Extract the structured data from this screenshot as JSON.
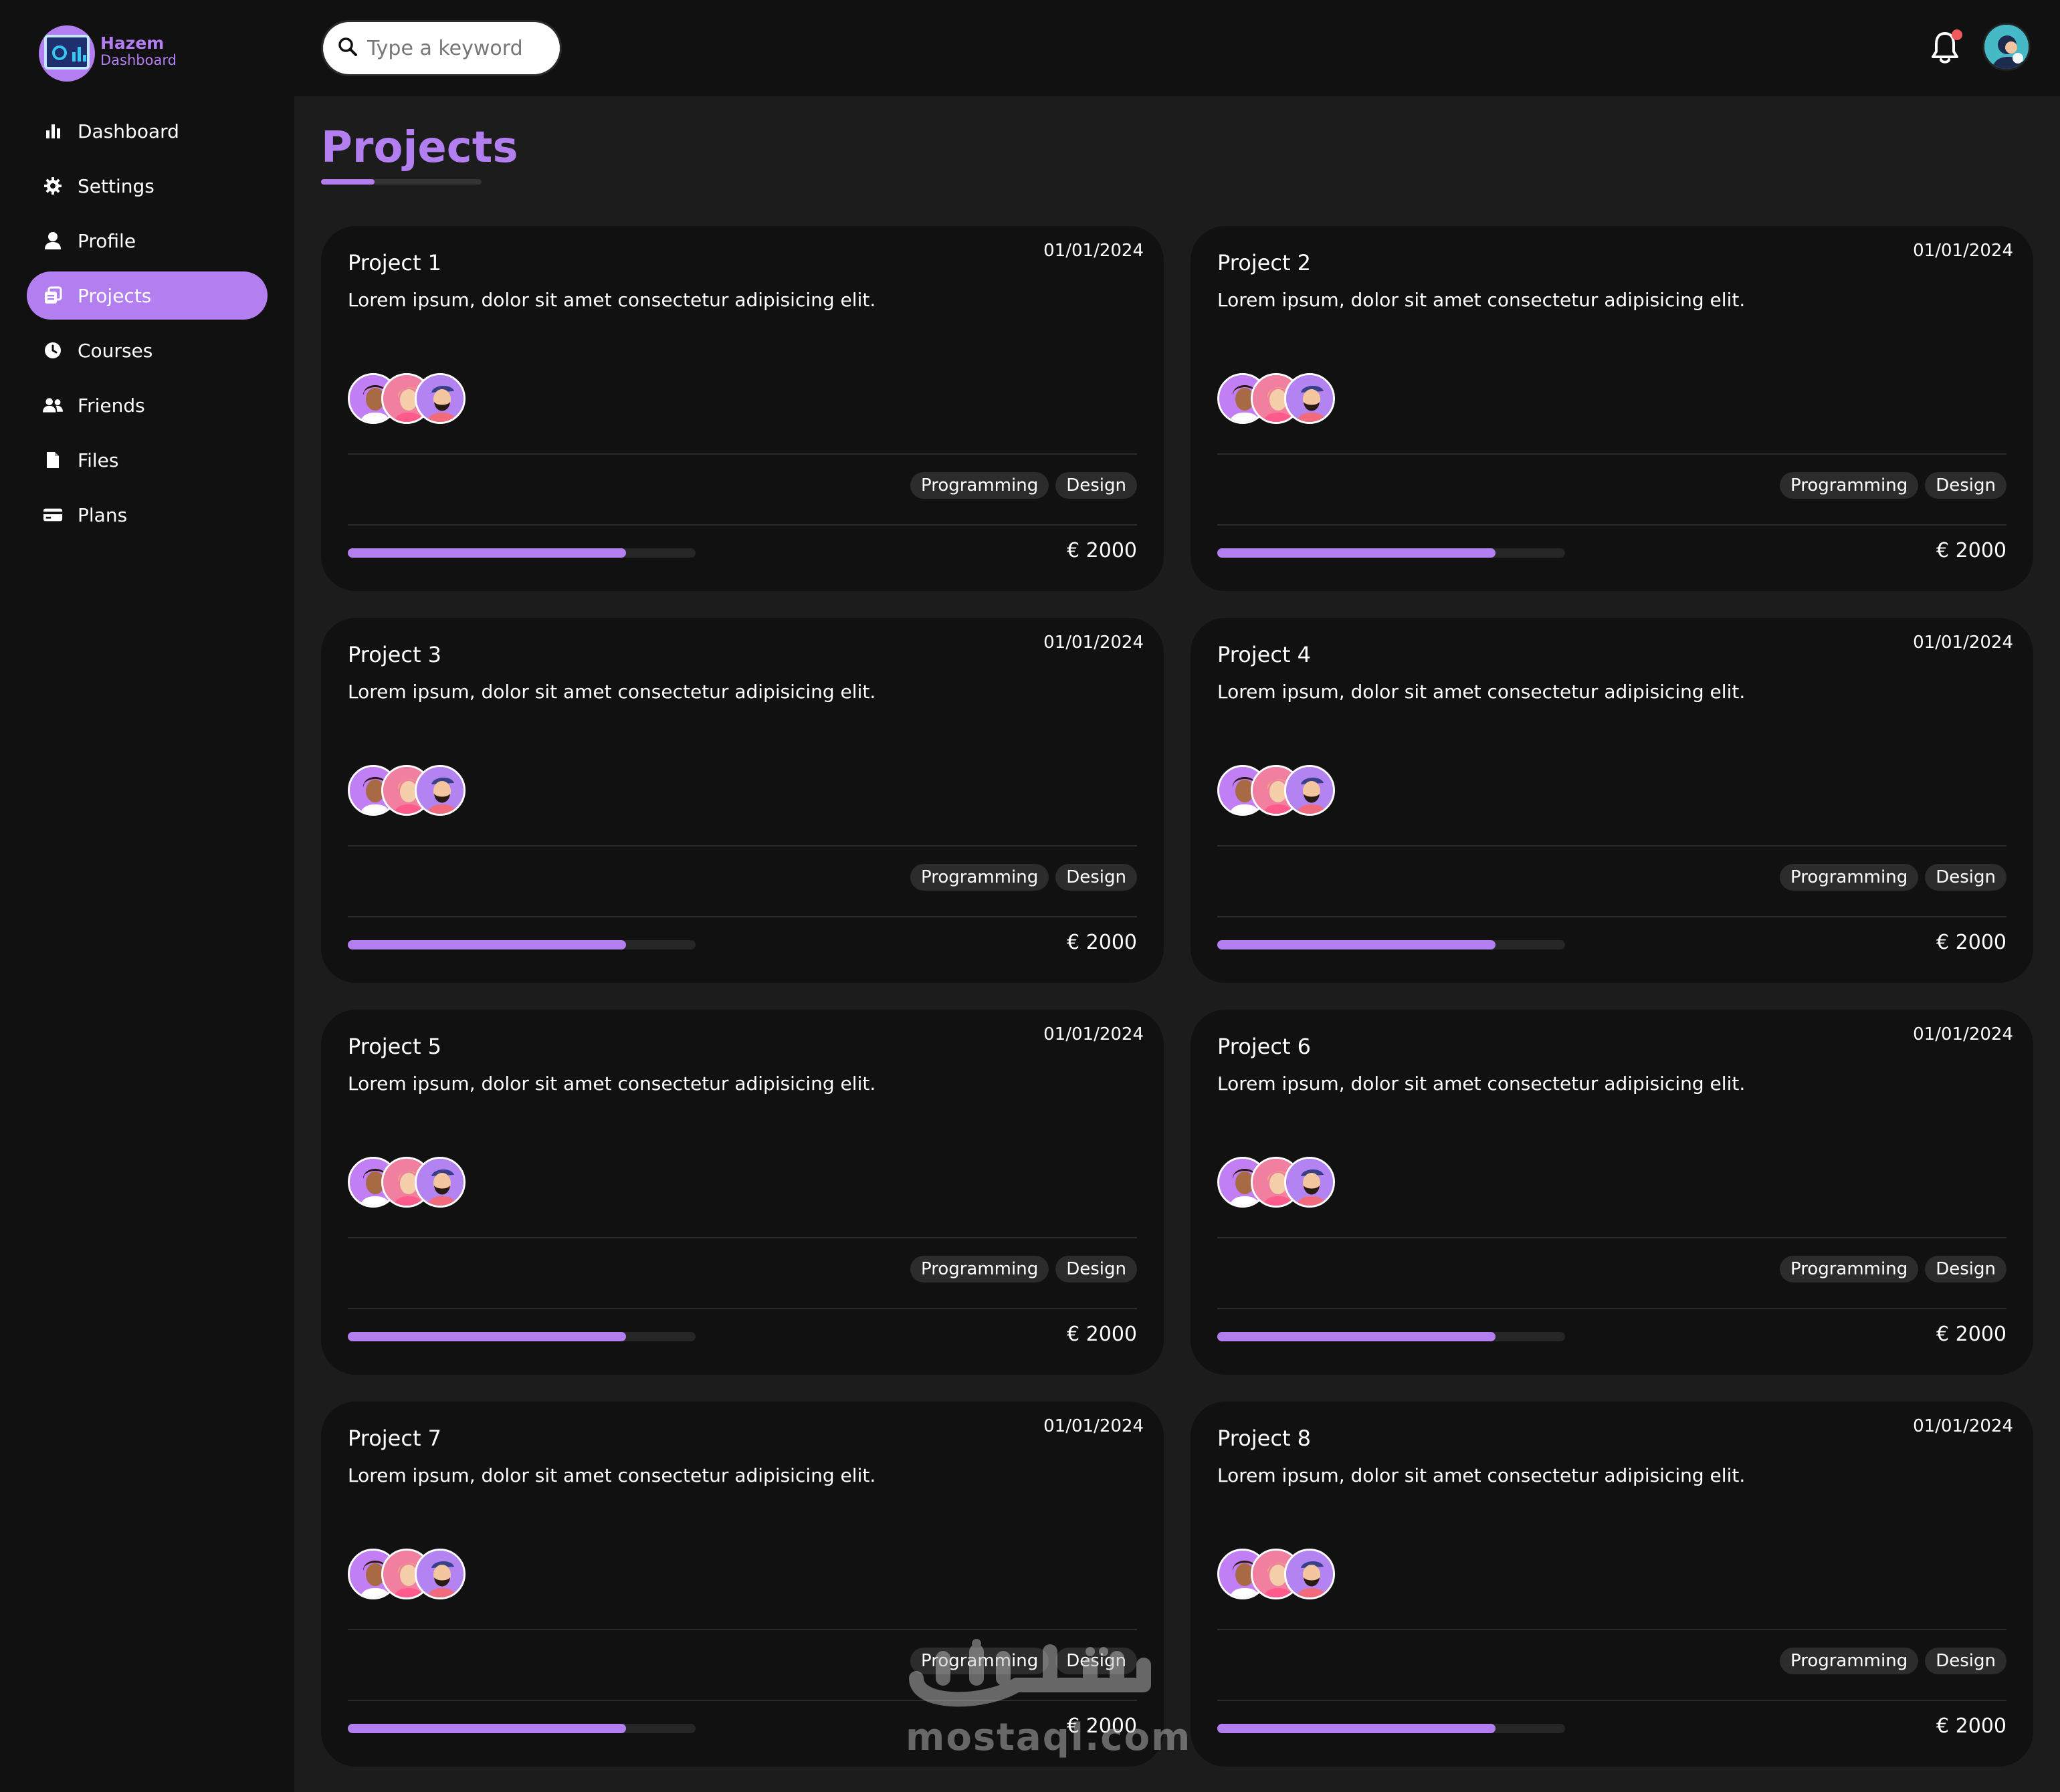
{
  "app": {
    "logo": {
      "line1": "Hazem",
      "line2": "Dashboard"
    },
    "accent_color": "#b37ff0",
    "notification_dot_color": "#f05a5a"
  },
  "sidebar": {
    "items": [
      {
        "label": "Dashboard",
        "icon": "chart-bar-icon",
        "active": false
      },
      {
        "label": "Settings",
        "icon": "gear-icon",
        "active": false
      },
      {
        "label": "Profile",
        "icon": "user-icon",
        "active": false
      },
      {
        "label": "Projects",
        "icon": "projects-icon",
        "active": true
      },
      {
        "label": "Courses",
        "icon": "clock-icon",
        "active": false
      },
      {
        "label": "Friends",
        "icon": "users-icon",
        "active": false
      },
      {
        "label": "Files",
        "icon": "file-icon",
        "active": false
      },
      {
        "label": "Plans",
        "icon": "credit-card-icon",
        "active": false
      }
    ]
  },
  "header": {
    "search_placeholder": "Type a keyword",
    "search_icon": "search-icon",
    "bell_icon": "bell-icon",
    "has_notification": true
  },
  "main": {
    "title": "Projects",
    "projects": [
      {
        "title": "Project 1",
        "date": "01/01/2024",
        "description": "Lorem ipsum, dolor sit amet consectetur adipisicing elit.",
        "tags": [
          "Programming",
          "Design"
        ],
        "progress": 0.8,
        "price": "€ 2000"
      },
      {
        "title": "Project 2",
        "date": "01/01/2024",
        "description": "Lorem ipsum, dolor sit amet consectetur adipisicing elit.",
        "tags": [
          "Programming",
          "Design"
        ],
        "progress": 0.8,
        "price": "€ 2000"
      },
      {
        "title": "Project 3",
        "date": "01/01/2024",
        "description": "Lorem ipsum, dolor sit amet consectetur adipisicing elit.",
        "tags": [
          "Programming",
          "Design"
        ],
        "progress": 0.8,
        "price": "€ 2000"
      },
      {
        "title": "Project 4",
        "date": "01/01/2024",
        "description": "Lorem ipsum, dolor sit amet consectetur adipisicing elit.",
        "tags": [
          "Programming",
          "Design"
        ],
        "progress": 0.8,
        "price": "€ 2000"
      },
      {
        "title": "Project 5",
        "date": "01/01/2024",
        "description": "Lorem ipsum, dolor sit amet consectetur adipisicing elit.",
        "tags": [
          "Programming",
          "Design"
        ],
        "progress": 0.8,
        "price": "€ 2000"
      },
      {
        "title": "Project 6",
        "date": "01/01/2024",
        "description": "Lorem ipsum, dolor sit amet consectetur adipisicing elit.",
        "tags": [
          "Programming",
          "Design"
        ],
        "progress": 0.8,
        "price": "€ 2000"
      },
      {
        "title": "Project 7",
        "date": "01/01/2024",
        "description": "Lorem ipsum, dolor sit amet consectetur adipisicing elit.",
        "tags": [
          "Programming",
          "Design"
        ],
        "progress": 0.8,
        "price": "€ 2000"
      },
      {
        "title": "Project 8",
        "date": "01/01/2024",
        "description": "Lorem ipsum, dolor sit amet consectetur adipisicing elit.",
        "tags": [
          "Programming",
          "Design"
        ],
        "progress": 0.8,
        "price": "€ 2000"
      }
    ]
  },
  "watermark": {
    "arabic": "مستقل",
    "latin": "mostaql.com"
  }
}
